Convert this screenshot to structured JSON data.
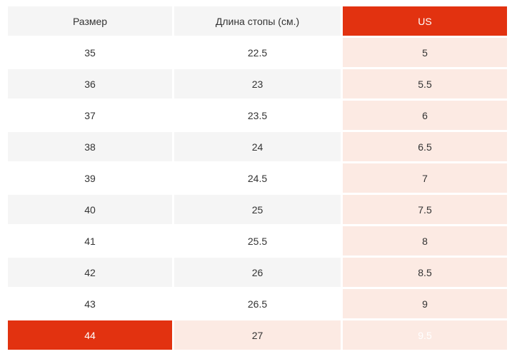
{
  "colors": {
    "accent": "#e23210",
    "accent_text": "#ffffff",
    "pink": "#fceae3",
    "stripe_gray": "#f5f5f5",
    "text": "#333333",
    "page_bg": "#ffffff"
  },
  "table": {
    "columns": [
      {
        "key": "size",
        "label": "Размер"
      },
      {
        "key": "foot_length",
        "label": "Длина стопы (см.)"
      },
      {
        "key": "us",
        "label": "US"
      }
    ],
    "rows": [
      {
        "size": "35",
        "foot_length": "22.5",
        "us": "5"
      },
      {
        "size": "36",
        "foot_length": "23",
        "us": "5.5"
      },
      {
        "size": "37",
        "foot_length": "23.5",
        "us": "6"
      },
      {
        "size": "38",
        "foot_length": "24",
        "us": "6.5"
      },
      {
        "size": "39",
        "foot_length": "24.5",
        "us": "7"
      },
      {
        "size": "40",
        "foot_length": "25",
        "us": "7.5"
      },
      {
        "size": "41",
        "foot_length": "25.5",
        "us": "8"
      },
      {
        "size": "42",
        "foot_length": "26",
        "us": "8.5"
      },
      {
        "size": "43",
        "foot_length": "26.5",
        "us": "9"
      },
      {
        "size": "44",
        "foot_length": "27",
        "us": "9.5"
      }
    ],
    "highlighted_row_index": 9
  }
}
